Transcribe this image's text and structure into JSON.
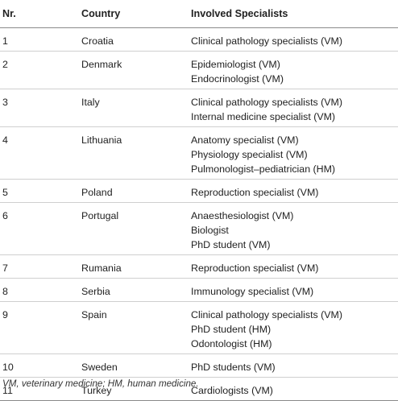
{
  "table": {
    "headers": [
      "Nr.",
      "Country",
      "Involved Specialists"
    ],
    "rows": [
      {
        "nr": "1",
        "country": "Croatia",
        "specialists": [
          "Clinical pathology specialists (VM)"
        ]
      },
      {
        "nr": "2",
        "country": "Denmark",
        "specialists": [
          "Epidemiologist (VM)",
          "Endocrinologist (VM)"
        ]
      },
      {
        "nr": "3",
        "country": "Italy",
        "specialists": [
          "Clinical pathology specialists (VM)",
          "Internal medicine specialist (VM)"
        ]
      },
      {
        "nr": "4",
        "country": "Lithuania",
        "specialists": [
          "Anatomy specialist (VM)",
          "Physiology specialist (VM)",
          "Pulmonologist–pediatrician (HM)"
        ]
      },
      {
        "nr": "5",
        "country": "Poland",
        "specialists": [
          "Reproduction specialist (VM)"
        ]
      },
      {
        "nr": "6",
        "country": "Portugal",
        "specialists": [
          "Anaesthesiologist (VM)",
          "Biologist",
          "PhD student (VM)"
        ]
      },
      {
        "nr": "7",
        "country": "Rumania",
        "specialists": [
          "Reproduction specialist (VM)"
        ]
      },
      {
        "nr": "8",
        "country": "Serbia",
        "specialists": [
          "Immunology specialist (VM)"
        ]
      },
      {
        "nr": "9",
        "country": "Spain",
        "specialists": [
          "Clinical pathology specialists (VM)",
          "PhD student (HM)",
          "Odontologist (HM)"
        ]
      },
      {
        "nr": "10",
        "country": "Sweden",
        "specialists": [
          "PhD students (VM)"
        ]
      },
      {
        "nr": "11",
        "country": "Turkey",
        "specialists": [
          "Cardiologists (VM)"
        ]
      }
    ]
  },
  "footnote": "VM, veterinary medicine; HM, human medicine."
}
